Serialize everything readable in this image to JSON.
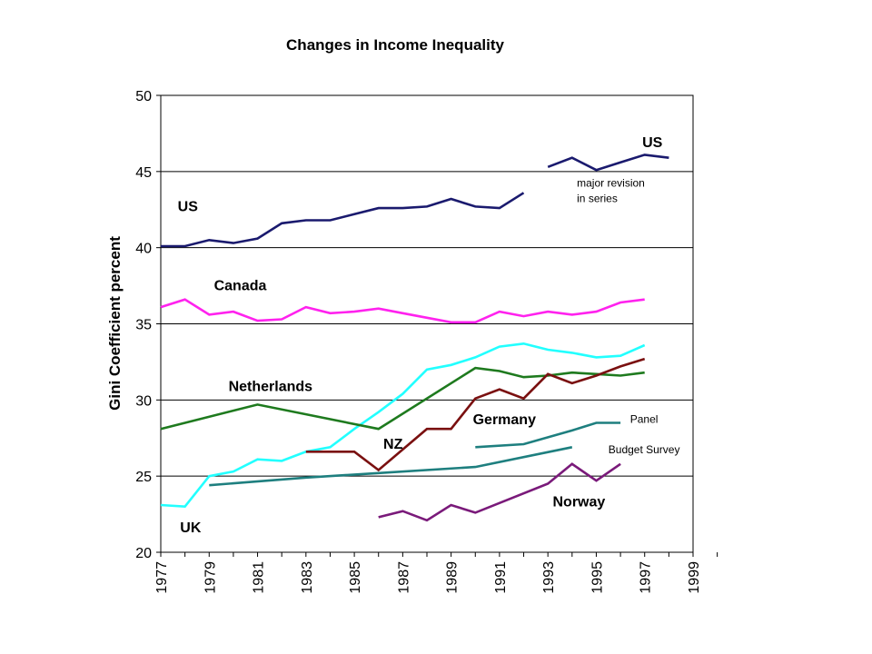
{
  "chart_data": {
    "type": "line",
    "title": "Changes in Income Inequality",
    "xlabel": "",
    "ylabel": "Gini Coefficient percent",
    "xlim": [
      1977,
      1999
    ],
    "ylim": [
      20,
      50
    ],
    "x_ticks": [
      "1977",
      "1979",
      "1981",
      "1983",
      "1985",
      "1987",
      "1989",
      "1991",
      "1993",
      "1995",
      "1997",
      "1999"
    ],
    "y_ticks": [
      "20",
      "25",
      "30",
      "35",
      "40",
      "45",
      "50"
    ],
    "grid": "horizontal",
    "legend": "none",
    "series": [
      {
        "name": "US",
        "color": "#1a1a6e",
        "points": [
          [
            1977,
            40.1
          ],
          [
            1978,
            40.1
          ],
          [
            1979,
            40.5
          ],
          [
            1980,
            40.3
          ],
          [
            1981,
            40.6
          ],
          [
            1982,
            41.6
          ],
          [
            1983,
            41.8
          ],
          [
            1984,
            41.8
          ],
          [
            1985,
            42.2
          ],
          [
            1986,
            42.6
          ],
          [
            1987,
            42.6
          ],
          [
            1988,
            42.7
          ],
          [
            1989,
            43.2
          ],
          [
            1990,
            42.7
          ],
          [
            1991,
            42.6
          ],
          [
            1992,
            43.6
          ]
        ]
      },
      {
        "name": "",
        "color": "#1a1a6e",
        "points": [
          [
            1993,
            45.3
          ],
          [
            1994,
            45.9
          ],
          [
            1995,
            45.1
          ],
          [
            1996,
            45.6
          ],
          [
            1997,
            46.1
          ],
          [
            1998,
            45.9
          ]
        ]
      },
      {
        "name": "Canada",
        "color": "#ff22ee",
        "points": [
          [
            1977,
            36.1
          ],
          [
            1978,
            36.6
          ],
          [
            1979,
            35.6
          ],
          [
            1980,
            35.8
          ],
          [
            1981,
            35.2
          ],
          [
            1982,
            35.3
          ],
          [
            1983,
            36.1
          ],
          [
            1984,
            35.7
          ],
          [
            1985,
            35.8
          ],
          [
            1986,
            36.0
          ],
          [
            1987,
            35.7
          ],
          [
            1988,
            35.4
          ],
          [
            1989,
            35.1
          ],
          [
            1990,
            35.1
          ],
          [
            1991,
            35.8
          ],
          [
            1992,
            35.5
          ],
          [
            1993,
            35.8
          ],
          [
            1994,
            35.6
          ],
          [
            1995,
            35.8
          ],
          [
            1996,
            36.4
          ],
          [
            1997,
            36.6
          ]
        ]
      },
      {
        "name": "UK",
        "color": "#22ffff",
        "points": [
          [
            1977,
            23.1
          ],
          [
            1978,
            23.0
          ],
          [
            1979,
            25.0
          ],
          [
            1980,
            25.3
          ],
          [
            1981,
            26.1
          ],
          [
            1982,
            26.0
          ],
          [
            1983,
            26.6
          ],
          [
            1984,
            26.9
          ],
          [
            1985,
            28.1
          ],
          [
            1986,
            29.2
          ],
          [
            1987,
            30.4
          ],
          [
            1988,
            32.0
          ],
          [
            1989,
            32.3
          ],
          [
            1990,
            32.8
          ],
          [
            1991,
            33.5
          ],
          [
            1992,
            33.7
          ],
          [
            1993,
            33.3
          ],
          [
            1994,
            33.1
          ],
          [
            1995,
            32.8
          ],
          [
            1996,
            32.9
          ],
          [
            1997,
            33.6
          ]
        ]
      },
      {
        "name": "Netherlands",
        "color": "#1e7a1e",
        "points": [
          [
            1977,
            28.1
          ],
          [
            1981,
            29.7
          ],
          [
            1986,
            28.1
          ],
          [
            1990,
            32.1
          ],
          [
            1991,
            31.9
          ],
          [
            1992,
            31.5
          ],
          [
            1993,
            31.6
          ],
          [
            1994,
            31.8
          ],
          [
            1995,
            31.7
          ],
          [
            1996,
            31.6
          ],
          [
            1997,
            31.8
          ]
        ]
      },
      {
        "name": "NZ",
        "color": "#7a1010",
        "points": [
          [
            1983,
            26.6
          ],
          [
            1984,
            26.6
          ],
          [
            1985,
            26.6
          ],
          [
            1986,
            25.4
          ],
          [
            1988,
            28.1
          ],
          [
            1989,
            28.1
          ],
          [
            1990,
            30.1
          ],
          [
            1991,
            30.7
          ],
          [
            1992,
            30.1
          ],
          [
            1993,
            31.7
          ],
          [
            1994,
            31.1
          ],
          [
            1995,
            31.6
          ],
          [
            1996,
            32.2
          ],
          [
            1997,
            32.7
          ]
        ]
      },
      {
        "name": "Panel",
        "color": "#1e7f7f",
        "points": [
          [
            1990,
            26.9
          ],
          [
            1992,
            27.1
          ],
          [
            1994,
            28.0
          ],
          [
            1995,
            28.5
          ],
          [
            1996,
            28.5
          ]
        ]
      },
      {
        "name": "Budget Survey",
        "color": "#1e7f7f",
        "points": [
          [
            1979,
            24.4
          ],
          [
            1983,
            24.9
          ],
          [
            1986,
            25.2
          ],
          [
            1990,
            25.6
          ],
          [
            1994,
            26.9
          ]
        ]
      },
      {
        "name": "Norway",
        "color": "#7a1a7a",
        "points": [
          [
            1986,
            22.3
          ],
          [
            1987,
            22.7
          ],
          [
            1988,
            22.1
          ],
          [
            1989,
            23.1
          ],
          [
            1990,
            22.6
          ],
          [
            1993,
            24.5
          ],
          [
            1994,
            25.8
          ],
          [
            1995,
            24.7
          ],
          [
            1996,
            25.8
          ]
        ]
      }
    ],
    "labels": [
      {
        "text": "US",
        "x": 1977.7,
        "y": 42.4,
        "style": "series"
      },
      {
        "text": "US",
        "x": 1996.9,
        "y": 46.6,
        "style": "series"
      },
      {
        "text": "major revision",
        "x": 1994.2,
        "y": 44.0,
        "style": "note"
      },
      {
        "text": "in series",
        "x": 1994.2,
        "y": 43.0,
        "style": "note"
      },
      {
        "text": "Canada",
        "x": 1979.2,
        "y": 37.2,
        "style": "series"
      },
      {
        "text": "Netherlands",
        "x": 1979.8,
        "y": 30.6,
        "style": "series"
      },
      {
        "text": "NZ",
        "x": 1986.2,
        "y": 26.8,
        "style": "series"
      },
      {
        "text": "Germany",
        "x": 1989.9,
        "y": 28.4,
        "style": "series"
      },
      {
        "text": "Panel",
        "x": 1996.4,
        "y": 28.5,
        "style": "note"
      },
      {
        "text": "Budget Survey",
        "x": 1995.5,
        "y": 26.5,
        "style": "note"
      },
      {
        "text": "Norway",
        "x": 1993.2,
        "y": 23.0,
        "style": "series"
      },
      {
        "text": "UK",
        "x": 1977.8,
        "y": 21.3,
        "style": "series"
      }
    ]
  }
}
